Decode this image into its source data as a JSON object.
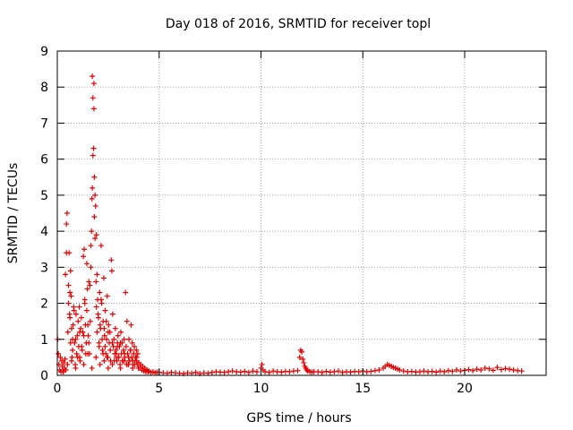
{
  "chart_data": {
    "type": "scatter",
    "title": "Day 018 of 2016, SRMTID for receiver topl",
    "xlabel": "GPS time / hours",
    "ylabel": "SRMTID / TECUs",
    "xlim": [
      0,
      24
    ],
    "ylim": [
      0,
      9
    ],
    "xticks": [
      0,
      5,
      10,
      15,
      20
    ],
    "xtick_labels": [
      "0",
      "5",
      "10",
      "15",
      "20"
    ],
    "yticks": [
      0,
      1,
      2,
      3,
      4,
      5,
      6,
      7,
      8,
      9
    ],
    "ytick_labels": [
      "0",
      "1",
      "2",
      "3",
      "4",
      "5",
      "6",
      "7",
      "8",
      "9"
    ],
    "grid": true,
    "marker": "+",
    "series_color": "#e00000",
    "series": [
      {
        "name": "SRMTID",
        "x": [
          0.02,
          0.05,
          0.08,
          0.12,
          0.15,
          0.18,
          0.22,
          0.25,
          0.28,
          0.32,
          0.35,
          0.38,
          0.42,
          0.45,
          0.48,
          0.52,
          0.55,
          0.58,
          0.62,
          0.65,
          0.68,
          0.72,
          0.75,
          0.78,
          0.82,
          0.85,
          0.88,
          0.92,
          0.95,
          0.98,
          1.02,
          1.05,
          1.08,
          1.12,
          1.15,
          1.18,
          1.22,
          1.25,
          1.28,
          1.32,
          1.35,
          1.38,
          1.42,
          1.45,
          1.48,
          1.52,
          1.55,
          1.58,
          1.62,
          1.65,
          1.68,
          1.72,
          1.75,
          1.78,
          1.82,
          1.85,
          1.88,
          1.92,
          1.95,
          1.98,
          2.02,
          2.05,
          2.08,
          2.12,
          2.15,
          2.18,
          2.22,
          2.25,
          2.28,
          2.32,
          2.35,
          2.38,
          2.42,
          2.45,
          2.48,
          2.52,
          2.55,
          2.58,
          2.62,
          2.65,
          2.68,
          2.72,
          2.75,
          2.78,
          2.82,
          2.85,
          2.88,
          2.92,
          2.95,
          2.98,
          3.02,
          3.05,
          3.08,
          3.12,
          3.15,
          3.18,
          3.22,
          3.25,
          3.28,
          3.32,
          3.35,
          3.38,
          3.42,
          3.45,
          3.48,
          3.52,
          3.55,
          3.58,
          3.62,
          3.65,
          3.68,
          3.72,
          3.75,
          3.78,
          3.82,
          3.85,
          3.88,
          3.92,
          3.95,
          3.98,
          0.4,
          0.45,
          0.55,
          0.6,
          0.62,
          0.65,
          0.7,
          0.75,
          0.8,
          0.9,
          1.0,
          1.1,
          1.2,
          1.3,
          1.35,
          1.4,
          1.45,
          1.5,
          1.55,
          1.6,
          1.65,
          1.7,
          1.72,
          1.75,
          1.8,
          1.8,
          1.82,
          1.85,
          1.9,
          1.92,
          1.95,
          2.0,
          2.05,
          2.1,
          2.15,
          2.2,
          2.25,
          2.3,
          2.35,
          2.4,
          2.45,
          2.5,
          2.6,
          2.7,
          2.8,
          2.9,
          2.95,
          3.0,
          3.1,
          3.2,
          3.3,
          3.4,
          3.5,
          3.6,
          3.7,
          3.8,
          3.9,
          0.3,
          0.5,
          0.7,
          0.9,
          1.1,
          1.3,
          1.5,
          1.7,
          1.9,
          2.1,
          2.3,
          2.5,
          2.7,
          2.9,
          3.1,
          3.3,
          3.5,
          3.7,
          3.9,
          4.0,
          4.05,
          4.1,
          4.15,
          4.2,
          4.25,
          4.3,
          4.35,
          4.4,
          4.45,
          4.5,
          4.6,
          4.7,
          4.8,
          4.9,
          5.0,
          5.2,
          5.4,
          5.6,
          5.8,
          6.0,
          6.2,
          6.4,
          6.6,
          6.8,
          7.0,
          7.2,
          7.4,
          7.6,
          7.8,
          8.0,
          8.2,
          8.4,
          8.6,
          8.8,
          9.0,
          9.2,
          9.4,
          9.6,
          9.8,
          10.0,
          10.05,
          10.1,
          10.2,
          10.4,
          10.6,
          10.8,
          11.0,
          11.2,
          11.4,
          11.6,
          11.8,
          11.9,
          11.95,
          12.0,
          12.05,
          12.1,
          12.15,
          12.2,
          12.25,
          12.3,
          12.4,
          12.5,
          12.6,
          12.8,
          13.0,
          13.2,
          13.4,
          13.6,
          13.8,
          14.0,
          14.2,
          14.4,
          14.6,
          14.8,
          15.0,
          15.2,
          15.4,
          15.6,
          15.8,
          16.0,
          16.1,
          16.2,
          16.3,
          16.4,
          16.5,
          16.6,
          16.7,
          16.8,
          17.0,
          17.2,
          17.4,
          17.6,
          17.8,
          18.0,
          18.2,
          18.4,
          18.6,
          18.8,
          19.0,
          19.2,
          19.4,
          19.6,
          19.8,
          20.0,
          20.2,
          20.4,
          20.6,
          20.8,
          21.0,
          21.2,
          21.4,
          21.6,
          21.8,
          22.0,
          22.2,
          22.4,
          22.6,
          22.8
        ],
        "y": [
          1.0,
          0.6,
          0.3,
          0.15,
          0.5,
          0.1,
          0.4,
          0.25,
          0.1,
          0.35,
          0.2,
          0.45,
          0.15,
          4.2,
          4.5,
          1.2,
          2.5,
          3.4,
          1.6,
          2.9,
          2.2,
          0.5,
          1.0,
          1.4,
          1.8,
          0.9,
          0.3,
          1.7,
          0.6,
          1.1,
          1.5,
          0.8,
          1.9,
          0.4,
          1.3,
          1.6,
          0.7,
          1.2,
          3.3,
          3.5,
          2.0,
          1.4,
          0.9,
          1.8,
          2.4,
          1.1,
          2.6,
          0.6,
          1.5,
          3.0,
          4.0,
          8.3,
          7.7,
          6.3,
          5.5,
          5.0,
          4.7,
          3.9,
          2.8,
          2.1,
          1.6,
          0.8,
          2.3,
          1.3,
          3.6,
          2.0,
          0.7,
          1.5,
          2.7,
          1.1,
          1.8,
          0.6,
          1.0,
          2.2,
          0.5,
          1.4,
          0.9,
          1.2,
          0.4,
          3.2,
          2.9,
          1.7,
          0.8,
          1.0,
          0.6,
          1.3,
          0.7,
          0.4,
          0.9,
          1.1,
          0.5,
          0.8,
          0.3,
          1.2,
          0.6,
          0.9,
          0.4,
          0.7,
          1.0,
          0.5,
          2.3,
          0.8,
          1.5,
          0.6,
          0.3,
          1.0,
          0.4,
          0.7,
          1.4,
          0.5,
          0.9,
          0.3,
          0.6,
          0.8,
          0.4,
          0.5,
          0.7,
          0.3,
          0.6,
          0.2,
          2.8,
          3.4,
          2.0,
          1.7,
          2.3,
          0.9,
          1.3,
          0.7,
          1.9,
          1.0,
          0.5,
          1.2,
          0.8,
          1.1,
          2.1,
          0.6,
          3.1,
          1.4,
          0.9,
          2.5,
          3.6,
          4.9,
          5.2,
          6.1,
          8.1,
          7.4,
          4.4,
          3.8,
          2.6,
          1.9,
          1.2,
          1.7,
          0.9,
          1.4,
          2.1,
          1.0,
          0.6,
          1.3,
          0.8,
          1.5,
          0.5,
          1.2,
          0.7,
          0.9,
          0.4,
          0.6,
          0.8,
          0.5,
          0.9,
          0.4,
          0.6,
          0.3,
          0.5,
          0.7,
          0.4,
          0.3,
          0.5,
          0.1,
          0.3,
          0.4,
          0.2,
          0.5,
          0.3,
          0.6,
          0.2,
          0.5,
          0.3,
          0.4,
          0.2,
          0.3,
          0.5,
          0.2,
          0.4,
          0.3,
          0.2,
          0.4,
          0.35,
          0.2,
          0.3,
          0.15,
          0.25,
          0.12,
          0.2,
          0.1,
          0.15,
          0.1,
          0.12,
          0.08,
          0.1,
          0.07,
          0.09,
          0.08,
          0.07,
          0.06,
          0.08,
          0.07,
          0.06,
          0.05,
          0.07,
          0.06,
          0.08,
          0.05,
          0.07,
          0.06,
          0.08,
          0.1,
          0.09,
          0.08,
          0.1,
          0.12,
          0.1,
          0.09,
          0.11,
          0.08,
          0.12,
          0.1,
          0.2,
          0.3,
          0.15,
          0.1,
          0.08,
          0.12,
          0.1,
          0.09,
          0.11,
          0.1,
          0.12,
          0.13,
          0.5,
          0.7,
          0.65,
          0.45,
          0.35,
          0.25,
          0.2,
          0.15,
          0.12,
          0.1,
          0.09,
          0.1,
          0.1,
          0.08,
          0.11,
          0.09,
          0.1,
          0.12,
          0.08,
          0.1,
          0.09,
          0.11,
          0.1,
          0.12,
          0.1,
          0.11,
          0.13,
          0.15,
          0.2,
          0.25,
          0.3,
          0.28,
          0.25,
          0.22,
          0.2,
          0.18,
          0.15,
          0.12,
          0.1,
          0.11,
          0.09,
          0.1,
          0.12,
          0.1,
          0.11,
          0.09,
          0.12,
          0.1,
          0.13,
          0.11,
          0.15,
          0.12,
          0.14,
          0.16,
          0.13,
          0.17,
          0.15,
          0.2,
          0.18,
          0.14,
          0.22,
          0.16,
          0.19,
          0.17,
          0.15,
          0.13,
          0.12
        ]
      }
    ]
  }
}
